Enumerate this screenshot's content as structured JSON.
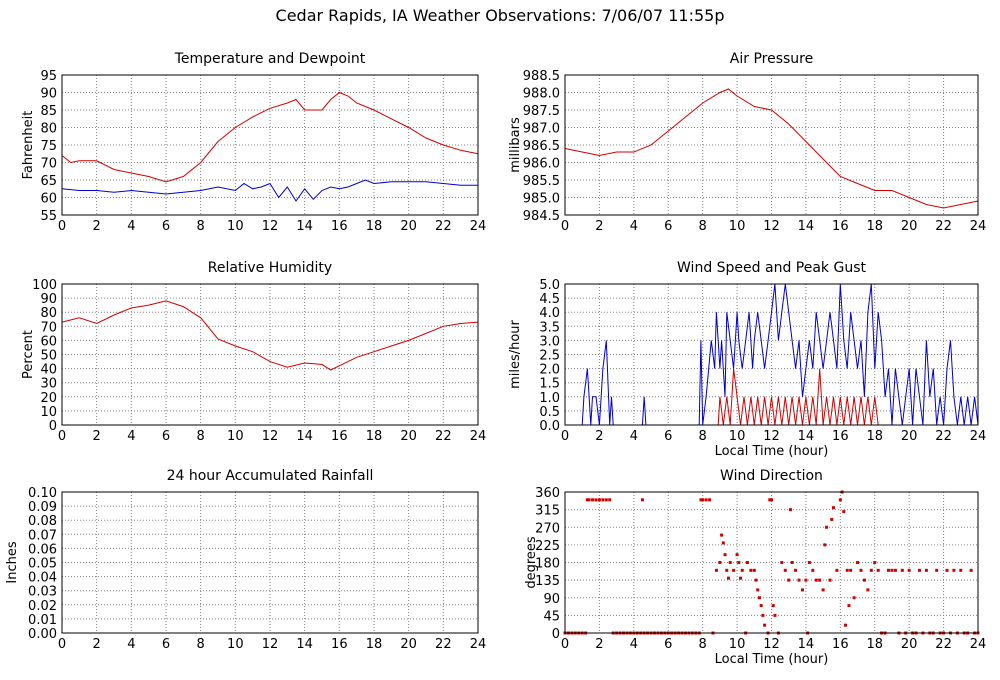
{
  "page_title": "Cedar Rapids, IA Weather Observations: 7/06/07 11:55p",
  "colors": {
    "red": "#d00000",
    "blue": "#0000d0",
    "grid": "#808080",
    "axis": "#000000"
  },
  "chart_data": [
    {
      "id": "temp",
      "type": "line",
      "title": "Temperature and Dewpoint",
      "xlabel": "",
      "ylabel": "Fahrenheit",
      "xlim": [
        0,
        24
      ],
      "ylim": [
        55,
        95
      ],
      "xticks": [
        0,
        2,
        4,
        6,
        8,
        10,
        12,
        14,
        16,
        18,
        20,
        22,
        24
      ],
      "yticks": [
        55,
        60,
        65,
        70,
        75,
        80,
        85,
        90,
        95
      ],
      "ydecimals": 0,
      "grid": true,
      "series": [
        {
          "name": "",
          "color": "red",
          "style": "line",
          "x": [
            0,
            0.5,
            1,
            2,
            3,
            4,
            5,
            6,
            7,
            8,
            9,
            10,
            11,
            12,
            13,
            13.5,
            14,
            15,
            15.5,
            16,
            16.5,
            17,
            18,
            19,
            20,
            21,
            22,
            23,
            24
          ],
          "y": [
            72,
            70,
            70.5,
            70.5,
            68,
            67,
            66,
            64.5,
            66,
            70,
            76,
            80,
            83,
            85.5,
            87,
            88,
            85,
            85,
            88,
            90,
            89,
            87,
            85,
            82.5,
            80,
            77,
            75,
            73.5,
            72.5
          ]
        },
        {
          "name": "",
          "color": "blue",
          "style": "line",
          "x": [
            0,
            1,
            2,
            3,
            4,
            5,
            6,
            7,
            8,
            9,
            10,
            10.5,
            11,
            11.5,
            12,
            12.5,
            13,
            13.5,
            14,
            14.5,
            15,
            15.5,
            16,
            16.5,
            17,
            17.5,
            18,
            19,
            20,
            21,
            22,
            23,
            24
          ],
          "y": [
            62.5,
            62,
            62,
            61.5,
            62,
            61.5,
            61,
            61.5,
            62,
            63,
            62,
            64,
            62.5,
            63,
            64,
            60,
            63,
            59,
            62.5,
            59.5,
            62,
            63,
            62.5,
            63,
            64,
            65,
            64,
            64.5,
            64.5,
            64.5,
            64,
            63.5,
            63.5
          ]
        }
      ]
    },
    {
      "id": "pressure",
      "type": "line",
      "title": "Air Pressure",
      "xlabel": "",
      "ylabel": "millibars",
      "xlim": [
        0,
        24
      ],
      "ylim": [
        984.5,
        988.5
      ],
      "xticks": [
        0,
        2,
        4,
        6,
        8,
        10,
        12,
        14,
        16,
        18,
        20,
        22,
        24
      ],
      "yticks": [
        984.5,
        985.0,
        985.5,
        986.0,
        986.5,
        987.0,
        987.5,
        988.0,
        988.5
      ],
      "ydecimals": 1,
      "grid": true,
      "series": [
        {
          "name": "",
          "color": "red",
          "style": "line",
          "x": [
            0,
            1,
            2,
            3,
            4,
            5,
            6,
            7,
            8,
            9,
            9.5,
            10,
            11,
            12,
            13,
            14,
            15,
            16,
            17,
            18,
            19,
            20,
            21,
            22,
            23,
            24
          ],
          "y": [
            986.4,
            986.3,
            986.2,
            986.3,
            986.3,
            986.5,
            986.9,
            987.3,
            987.7,
            988.0,
            988.1,
            987.9,
            987.6,
            987.5,
            987.1,
            986.6,
            986.1,
            985.6,
            985.4,
            985.2,
            985.2,
            985.0,
            984.8,
            984.7,
            984.8,
            984.9
          ]
        }
      ]
    },
    {
      "id": "humidity",
      "type": "line",
      "title": "Relative Humidity",
      "xlabel": "",
      "ylabel": "Percent",
      "xlim": [
        0,
        24
      ],
      "ylim": [
        0,
        100
      ],
      "xticks": [
        0,
        2,
        4,
        6,
        8,
        10,
        12,
        14,
        16,
        18,
        20,
        22,
        24
      ],
      "yticks": [
        0,
        10,
        20,
        30,
        40,
        50,
        60,
        70,
        80,
        90,
        100
      ],
      "ydecimals": 0,
      "grid": true,
      "series": [
        {
          "name": "",
          "color": "red",
          "style": "line",
          "x": [
            0,
            1,
            2,
            3,
            4,
            5,
            6,
            7,
            8,
            9,
            10,
            11,
            12,
            13,
            14,
            15,
            15.5,
            16,
            17,
            18,
            19,
            20,
            21,
            22,
            23,
            24
          ],
          "y": [
            73,
            76,
            72,
            78,
            83,
            85,
            88,
            84,
            76,
            61,
            56,
            52,
            45,
            41,
            44,
            43,
            39,
            42,
            48,
            52,
            56,
            60,
            65,
            70,
            72,
            73
          ]
        }
      ]
    },
    {
      "id": "wind",
      "type": "line",
      "title": "Wind Speed and Peak Gust",
      "xlabel": "Local Time (hour)",
      "ylabel": "miles/hour",
      "xlim": [
        0,
        24
      ],
      "ylim": [
        0,
        5
      ],
      "xticks": [
        0,
        2,
        4,
        6,
        8,
        10,
        12,
        14,
        16,
        18,
        20,
        22,
        24
      ],
      "yticks": [
        0,
        0.5,
        1,
        1.5,
        2,
        2.5,
        3,
        3.5,
        4,
        4.5,
        5
      ],
      "ydecimals": 1,
      "grid": true,
      "series": [
        {
          "name": "",
          "color": "blue",
          "style": "line",
          "x": [
            0,
            1,
            1.1,
            1.3,
            1.5,
            1.6,
            1.8,
            2,
            2.2,
            2.4,
            2.6,
            2.7,
            2.8,
            3,
            4,
            4.5,
            4.6,
            4.7,
            5,
            7.8,
            7.9,
            8.0,
            8.2,
            8.5,
            8.7,
            8.8,
            9.0,
            9.1,
            9.3,
            9.4,
            9.6,
            9.8,
            10.0,
            10.1,
            10.3,
            10.5,
            10.7,
            10.9,
            11.0,
            11.2,
            11.4,
            11.6,
            11.8,
            12.0,
            12.2,
            12.4,
            12.6,
            12.8,
            13.0,
            13.2,
            13.4,
            13.6,
            13.8,
            14.0,
            14.2,
            14.4,
            14.6,
            14.8,
            15.0,
            15.2,
            15.4,
            15.6,
            15.8,
            16.0,
            16.2,
            16.4,
            16.6,
            16.8,
            17.0,
            17.2,
            17.4,
            17.6,
            17.8,
            18.0,
            18.2,
            18.4,
            18.6,
            18.8,
            19.0,
            19.2,
            19.4,
            19.6,
            19.8,
            20.0,
            20.2,
            20.4,
            20.6,
            20.8,
            21.0,
            21.2,
            21.4,
            21.6,
            21.8,
            22.0,
            22.2,
            22.4,
            22.6,
            22.8,
            23.0,
            23.2,
            23.4,
            23.6,
            23.8,
            24
          ],
          "y": [
            0,
            0,
            1,
            2,
            0,
            1,
            1,
            0,
            2,
            3,
            0,
            1,
            0,
            0,
            0,
            0,
            1,
            0,
            0,
            0,
            3,
            0,
            1,
            3,
            2,
            4,
            2,
            3,
            1,
            4,
            3,
            2,
            4,
            3,
            2,
            3,
            4,
            2,
            3,
            4,
            3,
            2,
            3,
            4,
            5,
            3,
            4,
            5,
            4,
            3,
            2,
            3,
            1,
            2,
            3,
            2,
            4,
            3,
            2,
            3,
            4,
            3,
            2,
            5,
            3,
            2,
            4,
            3,
            2,
            3,
            1,
            4,
            5,
            2,
            4,
            3,
            1,
            2,
            0,
            2,
            1,
            0,
            1,
            2,
            0,
            2,
            1,
            0,
            3,
            1,
            2,
            0,
            1,
            0,
            2,
            3,
            1,
            0,
            1,
            0,
            1,
            0,
            1,
            0
          ]
        },
        {
          "name": "",
          "color": "red",
          "style": "line",
          "x": [
            0,
            8.9,
            9.0,
            9.2,
            9.4,
            9.6,
            9.8,
            10.0,
            10.2,
            10.4,
            10.6,
            10.8,
            11.0,
            11.2,
            11.4,
            11.6,
            11.8,
            12.0,
            12.2,
            12.4,
            12.6,
            12.8,
            13.0,
            13.2,
            13.4,
            13.6,
            13.8,
            14.0,
            14.2,
            14.4,
            14.6,
            14.8,
            15.0,
            15.2,
            15.4,
            15.6,
            15.8,
            16.0,
            16.2,
            16.4,
            16.6,
            16.8,
            17.0,
            17.2,
            17.4,
            17.6,
            17.8,
            18.0,
            18.2,
            24
          ],
          "y": [
            0,
            0,
            1,
            0,
            1,
            0,
            2,
            1,
            0,
            1,
            0,
            1,
            0,
            1,
            0,
            1,
            0,
            1,
            0,
            1,
            0,
            1,
            0,
            1,
            0,
            1,
            0,
            1,
            0,
            1,
            0,
            2,
            0,
            1,
            0,
            1,
            0,
            1,
            0,
            1,
            0,
            1,
            0,
            1,
            0,
            1,
            0,
            1,
            0,
            0
          ]
        }
      ]
    },
    {
      "id": "rain",
      "type": "line",
      "title": "24 hour Accumulated Rainfall",
      "xlabel": "",
      "ylabel": "Inches",
      "xlim": [
        0,
        24
      ],
      "ylim": [
        0,
        0.1
      ],
      "xticks": [
        0,
        2,
        4,
        6,
        8,
        10,
        12,
        14,
        16,
        18,
        20,
        22,
        24
      ],
      "yticks": [
        0,
        0.01,
        0.02,
        0.03,
        0.04,
        0.05,
        0.06,
        0.07,
        0.08,
        0.09,
        0.1
      ],
      "ydecimals": 2,
      "grid": true,
      "series": [
        {
          "name": "",
          "color": "red",
          "style": "line",
          "x": [
            0,
            24
          ],
          "y": [
            0,
            0
          ]
        }
      ]
    },
    {
      "id": "direction",
      "type": "scatter",
      "title": "Wind Direction",
      "xlabel": "Local Time (hour)",
      "ylabel": "degrees",
      "xlim": [
        0,
        24
      ],
      "ylim": [
        0,
        360
      ],
      "xticks": [
        0,
        2,
        4,
        6,
        8,
        10,
        12,
        14,
        16,
        18,
        20,
        22,
        24
      ],
      "yticks": [
        0,
        45,
        90,
        135,
        180,
        225,
        270,
        315,
        360
      ],
      "ydecimals": 0,
      "grid": true,
      "series": [
        {
          "name": "",
          "color": "red",
          "style": "points",
          "x": [
            0,
            0.2,
            0.4,
            0.6,
            0.8,
            1.0,
            1.2,
            1.3,
            1.4,
            1.6,
            1.8,
            2.0,
            2.2,
            2.4,
            2.6,
            2.8,
            3.0,
            3.2,
            3.4,
            3.6,
            3.8,
            4.0,
            4.2,
            4.4,
            4.5,
            4.6,
            4.8,
            5.0,
            5.2,
            5.4,
            5.6,
            5.8,
            6.0,
            6.2,
            6.4,
            6.6,
            6.8,
            7.0,
            7.2,
            7.4,
            7.6,
            7.8,
            7.9,
            8.0,
            8.2,
            8.4,
            8.6,
            8.8,
            9.0,
            9.1,
            9.2,
            9.3,
            9.4,
            9.5,
            9.6,
            9.8,
            10.0,
            10.1,
            10.2,
            10.3,
            10.5,
            10.6,
            10.8,
            11.0,
            11.1,
            11.2,
            11.3,
            11.4,
            11.5,
            11.6,
            11.8,
            11.9,
            12.0,
            12.1,
            12.2,
            12.4,
            12.6,
            12.8,
            13.0,
            13.1,
            13.2,
            13.4,
            13.6,
            13.8,
            14.0,
            14.1,
            14.2,
            14.4,
            14.6,
            14.8,
            15.0,
            15.1,
            15.2,
            15.4,
            15.5,
            15.6,
            15.8,
            16.0,
            16.1,
            16.2,
            16.3,
            16.4,
            16.5,
            16.6,
            16.8,
            17.0,
            17.2,
            17.4,
            17.6,
            17.8,
            18.0,
            18.2,
            18.4,
            18.6,
            18.8,
            19.0,
            19.2,
            19.4,
            19.6,
            19.8,
            20.0,
            20.2,
            20.4,
            20.6,
            20.8,
            21.0,
            21.2,
            21.4,
            21.6,
            21.8,
            22.0,
            22.2,
            22.4,
            22.6,
            22.8,
            23.0,
            23.2,
            23.4,
            23.6,
            23.8,
            24.0
          ],
          "y": [
            0,
            0,
            0,
            0,
            0,
            0,
            0,
            340,
            340,
            340,
            340,
            340,
            340,
            340,
            340,
            0,
            0,
            0,
            0,
            0,
            0,
            0,
            0,
            0,
            340,
            0,
            0,
            0,
            0,
            0,
            0,
            0,
            0,
            0,
            0,
            0,
            0,
            0,
            0,
            0,
            0,
            0,
            340,
            340,
            340,
            340,
            0,
            160,
            180,
            250,
            230,
            200,
            160,
            140,
            180,
            160,
            200,
            180,
            140,
            160,
            0,
            180,
            160,
            160,
            135,
            110,
            90,
            70,
            45,
            20,
            0,
            340,
            340,
            70,
            45,
            0,
            180,
            160,
            135,
            315,
            180,
            160,
            135,
            110,
            135,
            0,
            180,
            160,
            135,
            135,
            110,
            225,
            270,
            135,
            290,
            320,
            160,
            340,
            360,
            310,
            20,
            160,
            70,
            160,
            90,
            180,
            160,
            135,
            110,
            160,
            180,
            160,
            0,
            0,
            160,
            160,
            160,
            0,
            160,
            0,
            160,
            0,
            0,
            160,
            0,
            160,
            0,
            0,
            160,
            0,
            0,
            160,
            0,
            160,
            0,
            160,
            0,
            0,
            160,
            0,
            0
          ]
        }
      ]
    }
  ]
}
